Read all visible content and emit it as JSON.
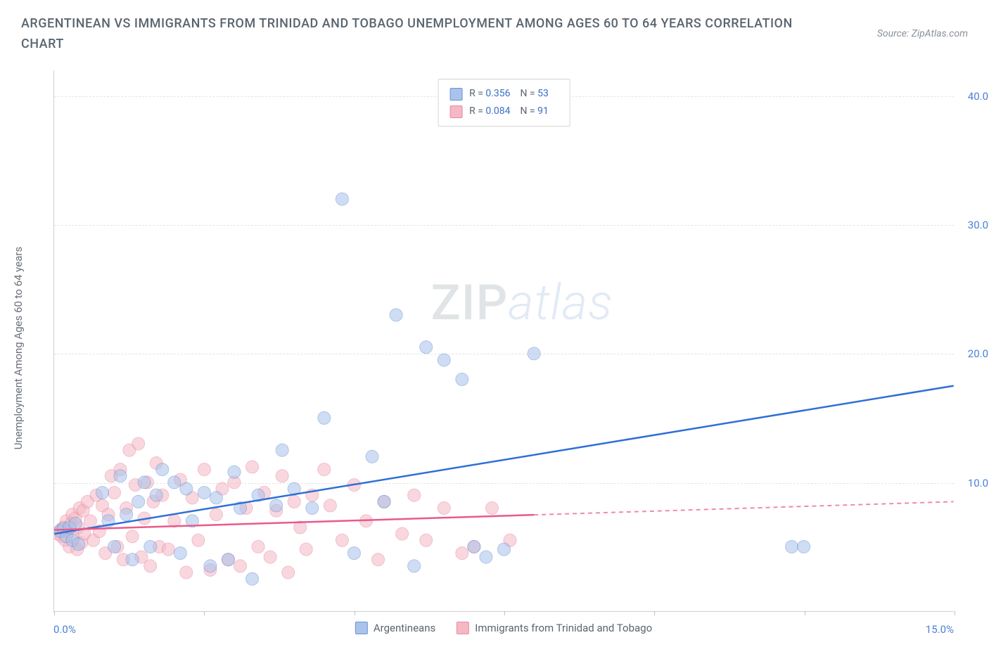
{
  "title": "ARGENTINEAN VS IMMIGRANTS FROM TRINIDAD AND TOBAGO UNEMPLOYMENT AMONG AGES 60 TO 64 YEARS CORRELATION CHART",
  "source": "Source: ZipAtlas.com",
  "y_axis_label": "Unemployment Among Ages 60 to 64 years",
  "x_origin": "0.0%",
  "x_end": "15.0%",
  "chart": {
    "type": "scatter",
    "xlim": [
      0,
      15
    ],
    "ylim": [
      0,
      42
    ],
    "x_tick_positions": [
      0,
      2.5,
      5,
      7.5,
      10,
      12.5,
      15
    ],
    "y_ticks": [
      {
        "v": 10,
        "label": "10.0%"
      },
      {
        "v": 20,
        "label": "20.0%"
      },
      {
        "v": 30,
        "label": "30.0%"
      },
      {
        "v": 40,
        "label": "40.0%"
      }
    ],
    "grid_color": "#e4e4e4",
    "background": "#ffffff",
    "marker_radius": 9,
    "marker_opacity": 0.55,
    "series": [
      {
        "key": "argentineans",
        "label": "Argentineans",
        "fill": "#a9c3ec",
        "stroke": "#6a93d6",
        "line_color": "#2e6fd6",
        "R": "0.356",
        "N": "53",
        "trend": {
          "x1": 0,
          "y1": 6.0,
          "x2": 15,
          "y2": 17.5,
          "x_solid_end": 15
        },
        "points": [
          [
            0.1,
            6.2
          ],
          [
            0.15,
            6.4
          ],
          [
            0.2,
            5.8
          ],
          [
            0.25,
            6.5
          ],
          [
            0.3,
            5.5
          ],
          [
            0.35,
            6.8
          ],
          [
            0.4,
            5.2
          ],
          [
            0.8,
            9.2
          ],
          [
            0.9,
            7.0
          ],
          [
            1.0,
            5.0
          ],
          [
            1.1,
            10.5
          ],
          [
            1.2,
            7.5
          ],
          [
            1.3,
            4.0
          ],
          [
            1.4,
            8.5
          ],
          [
            1.5,
            10.0
          ],
          [
            1.6,
            5.0
          ],
          [
            1.7,
            9.0
          ],
          [
            1.8,
            11.0
          ],
          [
            2.0,
            10.0
          ],
          [
            2.1,
            4.5
          ],
          [
            2.2,
            9.5
          ],
          [
            2.3,
            7.0
          ],
          [
            2.5,
            9.2
          ],
          [
            2.6,
            3.5
          ],
          [
            2.7,
            8.8
          ],
          [
            2.9,
            4.0
          ],
          [
            3.0,
            10.8
          ],
          [
            3.1,
            8.0
          ],
          [
            3.3,
            2.5
          ],
          [
            3.4,
            9.0
          ],
          [
            3.7,
            8.2
          ],
          [
            3.8,
            12.5
          ],
          [
            4.0,
            9.5
          ],
          [
            4.3,
            8.0
          ],
          [
            4.5,
            15.0
          ],
          [
            4.8,
            32.0
          ],
          [
            5.0,
            4.5
          ],
          [
            5.3,
            12.0
          ],
          [
            5.5,
            8.5
          ],
          [
            5.7,
            23.0
          ],
          [
            6.0,
            3.5
          ],
          [
            6.2,
            20.5
          ],
          [
            6.5,
            19.5
          ],
          [
            6.8,
            18.0
          ],
          [
            7.0,
            5.0
          ],
          [
            7.2,
            4.2
          ],
          [
            7.5,
            4.8
          ],
          [
            8.0,
            20.0
          ],
          [
            12.3,
            5.0
          ],
          [
            12.5,
            5.0
          ]
        ]
      },
      {
        "key": "trinidad",
        "label": "Immigrants from Trinidad and Tobago",
        "fill": "#f5b8c4",
        "stroke": "#e88aa0",
        "line_color": "#e85a8a",
        "R": "0.084",
        "N": "91",
        "trend": {
          "x1": 0,
          "y1": 6.3,
          "x2": 15,
          "y2": 8.5,
          "x_solid_end": 8.0
        },
        "points": [
          [
            0.05,
            6.0
          ],
          [
            0.1,
            6.3
          ],
          [
            0.12,
            5.8
          ],
          [
            0.15,
            6.5
          ],
          [
            0.18,
            5.5
          ],
          [
            0.2,
            7.0
          ],
          [
            0.22,
            6.2
          ],
          [
            0.25,
            5.0
          ],
          [
            0.28,
            6.8
          ],
          [
            0.3,
            7.5
          ],
          [
            0.32,
            5.7
          ],
          [
            0.35,
            7.2
          ],
          [
            0.38,
            4.8
          ],
          [
            0.4,
            6.5
          ],
          [
            0.42,
            8.0
          ],
          [
            0.45,
            5.3
          ],
          [
            0.48,
            7.8
          ],
          [
            0.5,
            6.0
          ],
          [
            0.55,
            8.5
          ],
          [
            0.6,
            7.0
          ],
          [
            0.65,
            5.5
          ],
          [
            0.7,
            9.0
          ],
          [
            0.75,
            6.2
          ],
          [
            0.8,
            8.2
          ],
          [
            0.85,
            4.5
          ],
          [
            0.9,
            7.5
          ],
          [
            0.95,
            10.5
          ],
          [
            1.0,
            9.2
          ],
          [
            1.05,
            5.0
          ],
          [
            1.1,
            11.0
          ],
          [
            1.15,
            4.0
          ],
          [
            1.2,
            8.0
          ],
          [
            1.25,
            12.5
          ],
          [
            1.3,
            5.8
          ],
          [
            1.35,
            9.8
          ],
          [
            1.4,
            13.0
          ],
          [
            1.45,
            4.2
          ],
          [
            1.5,
            7.2
          ],
          [
            1.55,
            10.0
          ],
          [
            1.6,
            3.5
          ],
          [
            1.65,
            8.5
          ],
          [
            1.7,
            11.5
          ],
          [
            1.75,
            5.0
          ],
          [
            1.8,
            9.0
          ],
          [
            1.9,
            4.8
          ],
          [
            2.0,
            7.0
          ],
          [
            2.1,
            10.2
          ],
          [
            2.2,
            3.0
          ],
          [
            2.3,
            8.8
          ],
          [
            2.4,
            5.5
          ],
          [
            2.5,
            11.0
          ],
          [
            2.6,
            3.2
          ],
          [
            2.7,
            7.5
          ],
          [
            2.8,
            9.5
          ],
          [
            2.9,
            4.0
          ],
          [
            3.0,
            10.0
          ],
          [
            3.1,
            3.5
          ],
          [
            3.2,
            8.0
          ],
          [
            3.3,
            11.2
          ],
          [
            3.4,
            5.0
          ],
          [
            3.5,
            9.2
          ],
          [
            3.6,
            4.2
          ],
          [
            3.7,
            7.8
          ],
          [
            3.8,
            10.5
          ],
          [
            3.9,
            3.0
          ],
          [
            4.0,
            8.5
          ],
          [
            4.1,
            6.5
          ],
          [
            4.2,
            4.8
          ],
          [
            4.3,
            9.0
          ],
          [
            4.5,
            11.0
          ],
          [
            4.6,
            8.2
          ],
          [
            4.8,
            5.5
          ],
          [
            5.0,
            9.8
          ],
          [
            5.2,
            7.0
          ],
          [
            5.4,
            4.0
          ],
          [
            5.5,
            8.5
          ],
          [
            5.8,
            6.0
          ],
          [
            6.0,
            9.0
          ],
          [
            6.2,
            5.5
          ],
          [
            6.5,
            8.0
          ],
          [
            6.8,
            4.5
          ],
          [
            7.0,
            5.0
          ],
          [
            7.3,
            8.0
          ],
          [
            7.6,
            5.5
          ]
        ]
      }
    ]
  },
  "watermark": {
    "zip": "ZIP",
    "atlas": "atlas"
  }
}
